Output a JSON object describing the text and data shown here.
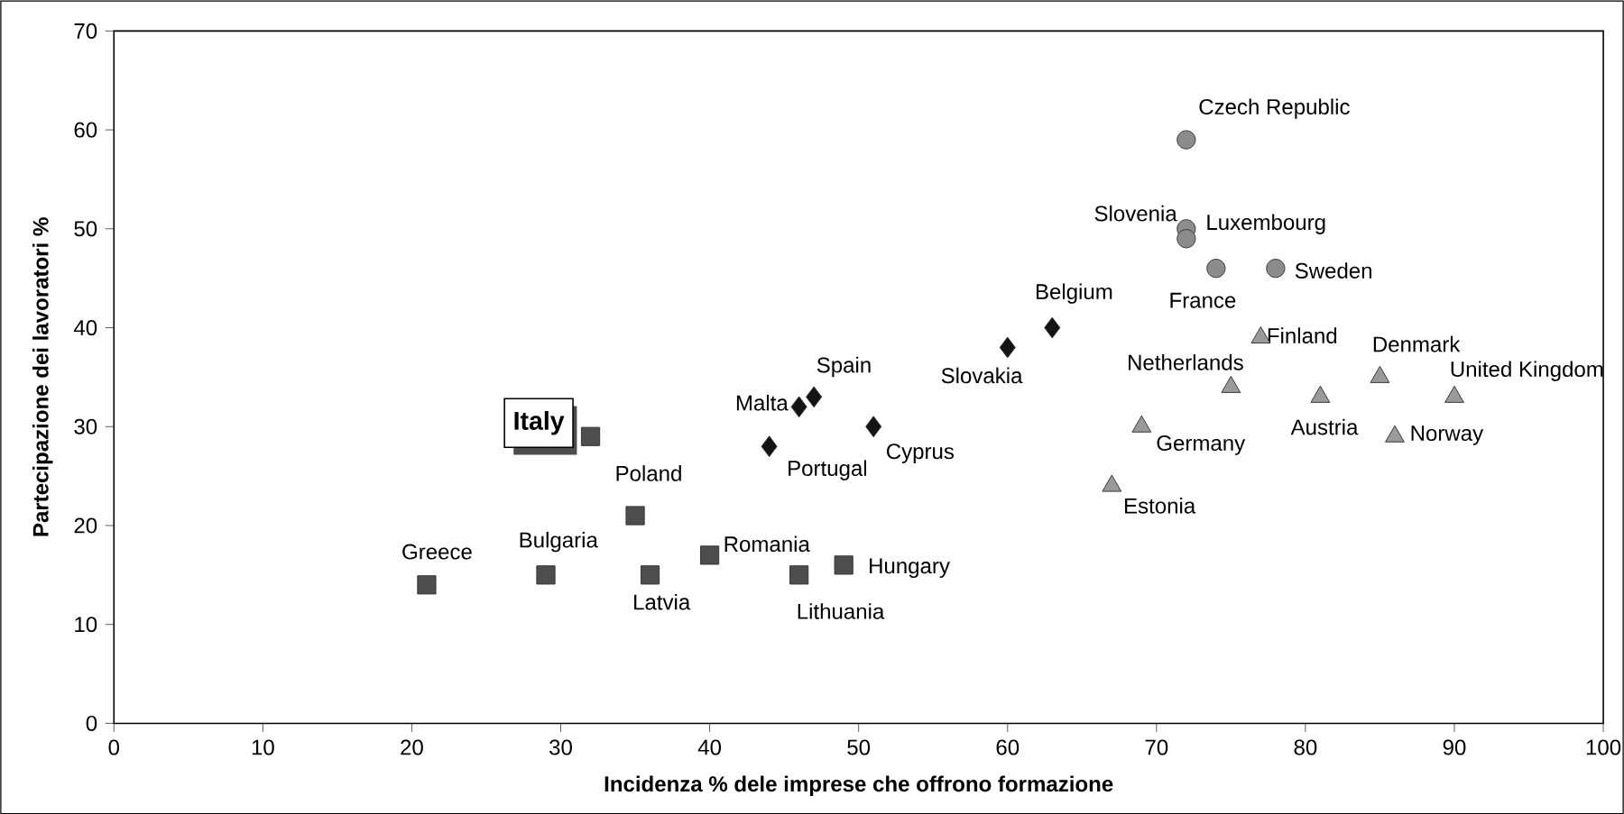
{
  "chart_data": {
    "type": "scatter",
    "xlabel": "Incidenza % dele imprese che offrono formazione",
    "ylabel": "Partecipazione dei lavoratori %",
    "xlim": [
      0,
      100
    ],
    "ylim": [
      0,
      70
    ],
    "xticks": [
      0,
      10,
      20,
      30,
      40,
      50,
      60,
      70,
      80,
      90,
      100
    ],
    "yticks": [
      0,
      10,
      20,
      30,
      40,
      50,
      60,
      70
    ],
    "grid": false,
    "series": [
      {
        "color": "#4d4d4d",
        "marker": "square",
        "x": [
          32,
          21,
          29,
          35,
          36,
          40,
          46,
          49
        ],
        "values": [
          29,
          14,
          15,
          21,
          15,
          17,
          15,
          16
        ]
      },
      {
        "color": "#141414",
        "marker": "diamond",
        "x": [
          44,
          46,
          47,
          51,
          60,
          63
        ],
        "values": [
          28,
          32,
          33,
          30,
          38,
          40
        ]
      },
      {
        "color": "#8c8c8c",
        "marker": "circle",
        "x": [
          72,
          72,
          72,
          74,
          78
        ],
        "values": [
          59,
          50,
          49,
          46,
          46
        ]
      },
      {
        "color": "#9a9a9a",
        "marker": "triangle",
        "x": [
          77,
          75,
          85,
          90,
          81,
          86,
          69,
          67
        ],
        "values": [
          39,
          34,
          35,
          33,
          33,
          29,
          30,
          24
        ]
      }
    ],
    "annotations": [
      {
        "text": "Italy",
        "x": 32,
        "y": 29
      },
      {
        "text": "Greece",
        "x": 21,
        "y": 14
      },
      {
        "text": "Bulgaria",
        "x": 29,
        "y": 15
      },
      {
        "text": "Poland",
        "x": 35,
        "y": 21
      },
      {
        "text": "Latvia",
        "x": 36,
        "y": 15
      },
      {
        "text": "Romania",
        "x": 40,
        "y": 17
      },
      {
        "text": "Lithuania",
        "x": 46,
        "y": 15
      },
      {
        "text": "Hungary",
        "x": 49,
        "y": 16
      },
      {
        "text": "Portugal",
        "x": 44,
        "y": 28
      },
      {
        "text": "Malta",
        "x": 46,
        "y": 32
      },
      {
        "text": "Spain",
        "x": 47,
        "y": 33
      },
      {
        "text": "Cyprus",
        "x": 51,
        "y": 30
      },
      {
        "text": "Slovakia",
        "x": 60,
        "y": 38
      },
      {
        "text": "Belgium",
        "x": 63,
        "y": 40
      },
      {
        "text": "Czech Republic",
        "x": 72,
        "y": 59
      },
      {
        "text": "Slovenia",
        "x": 72,
        "y": 50
      },
      {
        "text": "Luxembourg",
        "x": 72,
        "y": 49
      },
      {
        "text": "France",
        "x": 74,
        "y": 46
      },
      {
        "text": "Sweden",
        "x": 78,
        "y": 46
      },
      {
        "text": "Finland",
        "x": 77,
        "y": 39
      },
      {
        "text": "Netherlands",
        "x": 75,
        "y": 34
      },
      {
        "text": "Denmark",
        "x": 85,
        "y": 35
      },
      {
        "text": "United Kingdom",
        "x": 90,
        "y": 33
      },
      {
        "text": "Austria",
        "x": 81,
        "y": 33
      },
      {
        "text": "Norway",
        "x": 86,
        "y": 29
      },
      {
        "text": "Germany",
        "x": 69,
        "y": 30
      },
      {
        "text": "Estonia",
        "x": 67,
        "y": 24
      }
    ]
  }
}
